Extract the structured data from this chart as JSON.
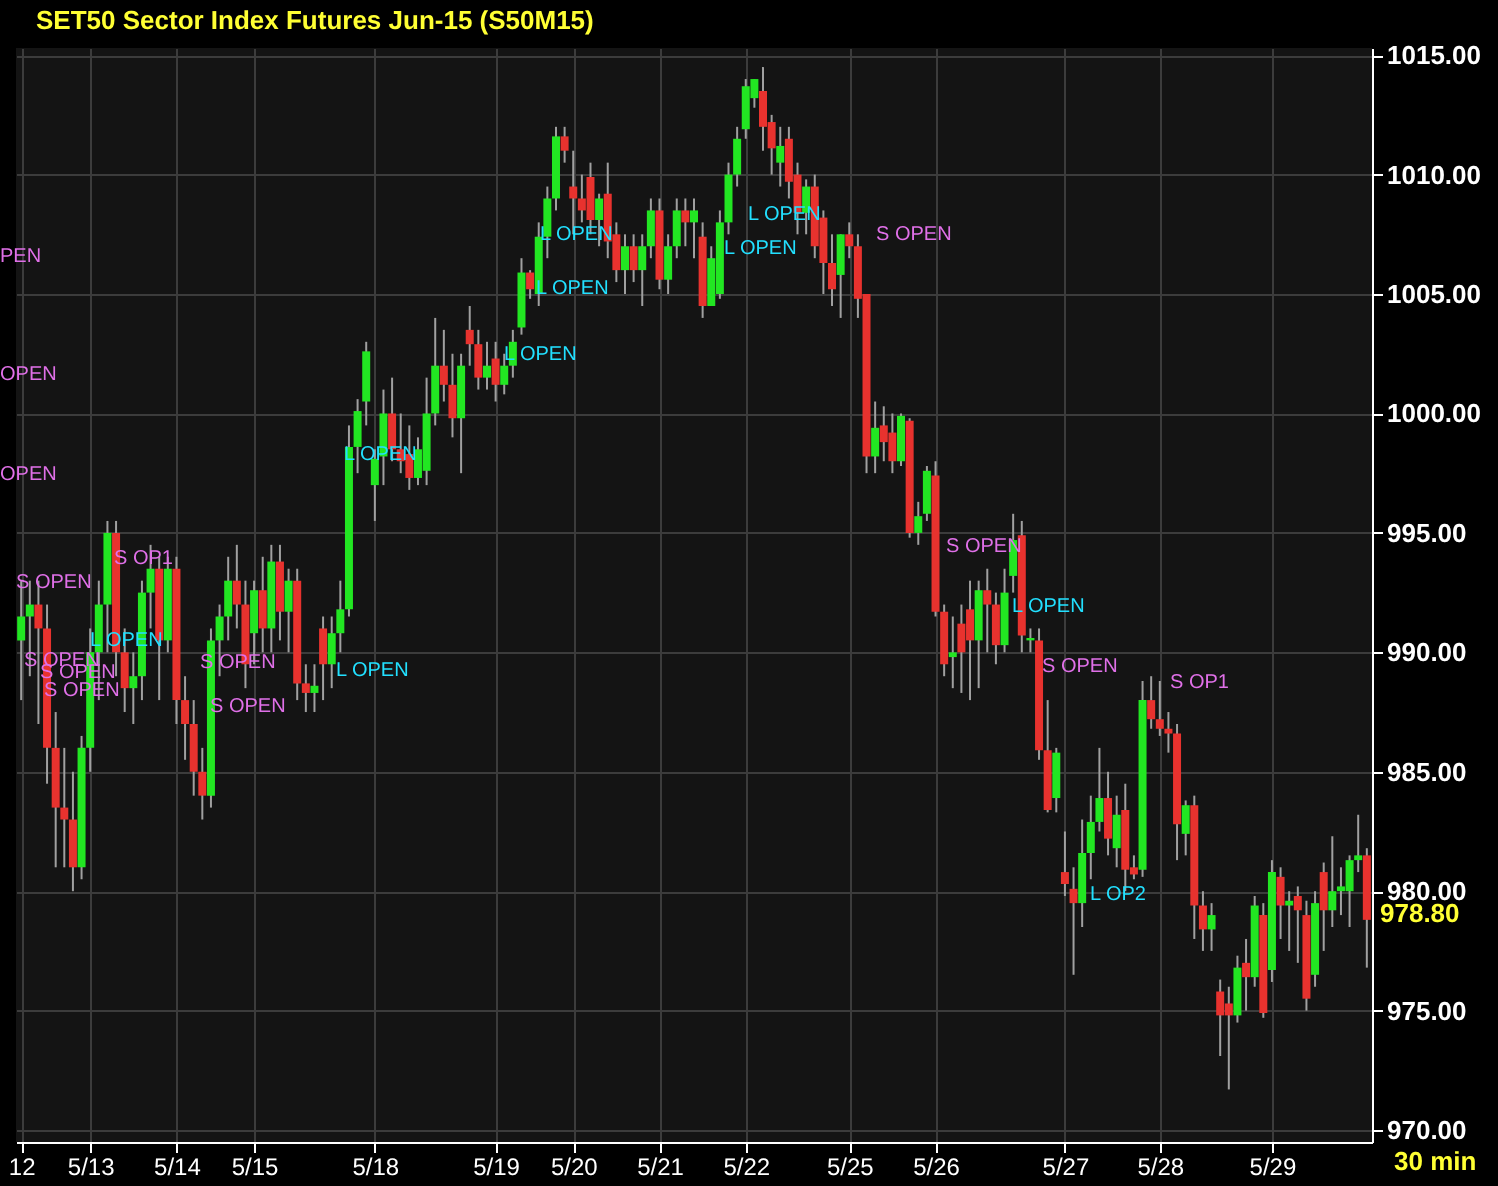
{
  "chart_data": {
    "type": "candlestick",
    "title": "SET50  Sector Index Futures Jun-15  (S50M15)",
    "categories": [
      "12",
      null,
      null,
      null,
      null,
      null,
      null,
      null,
      "5/13",
      null,
      null,
      null,
      null,
      null,
      null,
      null,
      null,
      null,
      "5/14",
      null,
      null,
      null,
      null,
      null,
      null,
      null,
      null,
      "5/15",
      null,
      null,
      null,
      null,
      null,
      null,
      null,
      null,
      null,
      null,
      null,
      null,
      null,
      "5/18",
      null,
      null,
      null,
      null,
      null,
      null,
      null,
      null,
      null,
      null,
      null,
      null,
      null,
      "5/19",
      null,
      null,
      null,
      null,
      null,
      null,
      null,
      null,
      "5/20",
      null,
      null,
      null,
      null,
      null,
      null,
      null,
      null,
      null,
      "5/21",
      null,
      null,
      null,
      null,
      null,
      null,
      null,
      null,
      null,
      "5/22",
      null,
      null,
      null,
      null,
      null,
      null,
      null,
      null,
      null,
      null,
      null,
      "5/25",
      null,
      null,
      null,
      null,
      null,
      null,
      null,
      null,
      null,
      "5/26",
      null,
      null,
      null,
      null,
      null,
      null,
      null,
      null,
      null,
      null,
      null,
      null,
      null,
      null,
      "5/27",
      null,
      null,
      null,
      null,
      null,
      null,
      null,
      null,
      null,
      null,
      "5/28",
      null,
      null,
      null,
      null,
      null,
      null,
      null,
      null,
      null,
      null,
      null,
      null,
      "5/29",
      null,
      null,
      null,
      null,
      null,
      null,
      null,
      null,
      null,
      null,
      null
    ],
    "ohlc": [
      [
        990.5,
        993,
        988,
        991.5
      ],
      [
        991.5,
        993,
        989,
        992
      ],
      [
        992,
        993,
        987,
        991
      ],
      [
        991,
        992,
        984.5,
        986
      ],
      [
        986,
        987.5,
        981,
        983.5
      ],
      [
        983.5,
        986,
        981,
        983
      ],
      [
        983,
        985,
        980,
        981
      ],
      [
        981,
        986.5,
        980.5,
        986
      ],
      [
        986,
        991,
        985,
        990
      ],
      [
        990,
        993,
        988,
        992
      ],
      [
        992,
        995.5,
        990,
        995
      ],
      [
        995,
        995.5,
        989,
        990
      ],
      [
        990,
        991,
        987.5,
        988.5
      ],
      [
        988.5,
        990,
        987,
        989
      ],
      [
        989,
        993,
        988,
        992.5
      ],
      [
        992.5,
        994.5,
        991,
        993.5
      ],
      [
        993.5,
        994,
        988,
        990.5
      ],
      [
        990.5,
        994,
        990,
        993.5
      ],
      [
        993.5,
        994,
        987,
        988
      ],
      [
        988,
        989,
        985.5,
        987
      ],
      [
        987,
        988,
        984,
        985
      ],
      [
        985,
        986,
        983,
        984
      ],
      [
        984,
        991,
        983.5,
        990.5
      ],
      [
        990.5,
        992,
        989,
        991.5
      ],
      [
        991.5,
        994,
        990.5,
        993
      ],
      [
        993,
        994.5,
        991,
        992
      ],
      [
        992,
        993,
        988.5,
        989.5
      ],
      [
        990.8,
        993,
        989.5,
        992.6
      ],
      [
        992.6,
        994,
        990,
        991
      ],
      [
        991,
        994.5,
        990,
        993.8
      ],
      [
        993.8,
        994.5,
        990.5,
        991.7
      ],
      [
        991.7,
        993.5,
        990,
        993
      ],
      [
        993,
        993.5,
        988,
        988.7
      ],
      [
        988.7,
        989.5,
        987.5,
        988.3
      ],
      [
        988.3,
        989.5,
        987.5,
        988.6
      ],
      [
        991,
        991.5,
        988,
        989.5
      ],
      [
        989.5,
        991.5,
        988.5,
        990.8
      ],
      [
        990.8,
        993,
        990,
        991.8
      ],
      [
        991.8,
        999.5,
        991.5,
        998.6
      ],
      [
        998.6,
        1000.6,
        997.5,
        1000.1
      ],
      [
        1000.5,
        1003,
        999.5,
        1002.6
      ],
      [
        997,
        998.5,
        995.5,
        998.1
      ],
      [
        998.2,
        1001,
        997,
        1000
      ],
      [
        1000,
        1001.5,
        998,
        998.5
      ],
      [
        998.5,
        1000,
        997.5,
        998
      ],
      [
        998.3,
        999.5,
        996.8,
        997.3
      ],
      [
        997.3,
        999,
        997,
        998.5
      ],
      [
        997.6,
        1001.5,
        997,
        1000
      ],
      [
        1000,
        1004,
        999.5,
        1002
      ],
      [
        1002,
        1003.5,
        1000.5,
        1001.2
      ],
      [
        1001.2,
        1002.5,
        999,
        999.8
      ],
      [
        999.8,
        1002.5,
        997.5,
        1002
      ],
      [
        1003.5,
        1004.5,
        1002,
        1002.9
      ],
      [
        1002.9,
        1003.5,
        1001,
        1001.5
      ],
      [
        1001.5,
        1003,
        1001,
        1002
      ],
      [
        1002.3,
        1003,
        1000.5,
        1001.2
      ],
      [
        1001.2,
        1002.5,
        1000.8,
        1002
      ],
      [
        1002,
        1003.5,
        1001.5,
        1003
      ],
      [
        1003.6,
        1006.5,
        1003.3,
        1005.9
      ],
      [
        1005.9,
        1006,
        1004.8,
        1005.2
      ],
      [
        1005,
        1008,
        1004.5,
        1007.4
      ],
      [
        1007.4,
        1009.5,
        1006.5,
        1009
      ],
      [
        1009,
        1012,
        1008.5,
        1011.6
      ],
      [
        1011.6,
        1012,
        1010.5,
        1011
      ],
      [
        1009.5,
        1011,
        1007.5,
        1009
      ],
      [
        1009,
        1010,
        1008,
        1008.5
      ],
      [
        1009.9,
        1010.5,
        1007.5,
        1008.1
      ],
      [
        1008.1,
        1009.2,
        1007,
        1009
      ],
      [
        1009.2,
        1010.5,
        1006.5,
        1007.2
      ],
      [
        1007.5,
        1008,
        1005.5,
        1006
      ],
      [
        1006,
        1007.5,
        1005,
        1007
      ],
      [
        1007,
        1007.5,
        1005.5,
        1006
      ],
      [
        1006,
        1007.5,
        1004.5,
        1007
      ],
      [
        1007,
        1009,
        1006.5,
        1008.5
      ],
      [
        1008.5,
        1009,
        1005.2,
        1005.6
      ],
      [
        1005.6,
        1007.5,
        1005,
        1007
      ],
      [
        1007,
        1009,
        1006.5,
        1008.5
      ],
      [
        1008.5,
        1009,
        1007,
        1008
      ],
      [
        1008,
        1009,
        1006.5,
        1008.5
      ],
      [
        1007.4,
        1008,
        1004,
        1004.5
      ],
      [
        1004.5,
        1007,
        1004.5,
        1006.5
      ],
      [
        1005,
        1008.5,
        1004.8,
        1008
      ],
      [
        1008,
        1010.5,
        1007.5,
        1010
      ],
      [
        1010,
        1012,
        1009.5,
        1011.5
      ],
      [
        1011.9,
        1014,
        1011.5,
        1013.7
      ],
      [
        1013.2,
        1014,
        1012.8,
        1014
      ],
      [
        1013.5,
        1014.5,
        1011,
        1012
      ],
      [
        1012.2,
        1012.5,
        1010,
        1011.1
      ],
      [
        1010.5,
        1012,
        1009.5,
        1011.2
      ],
      [
        1011.5,
        1012,
        1009,
        1009.7
      ],
      [
        1010,
        1010.5,
        1007.5,
        1008.4
      ],
      [
        1008.4,
        1009.8,
        1007.5,
        1009.5
      ],
      [
        1009.5,
        1010,
        1006.5,
        1007
      ],
      [
        1008.2,
        1008.5,
        1005,
        1006.3
      ],
      [
        1006.3,
        1007.5,
        1004.5,
        1005.2
      ],
      [
        1005.8,
        1007.5,
        1004,
        1007.5
      ],
      [
        1007.5,
        1008,
        1006.5,
        1007
      ],
      [
        1007,
        1007.5,
        1004,
        1004.8
      ],
      [
        1005,
        1005,
        997.5,
        998.2
      ],
      [
        998.2,
        1000.5,
        997.5,
        999.4
      ],
      [
        999.5,
        1000.3,
        998,
        998.8
      ],
      [
        999.2,
        1000,
        997.5,
        998
      ],
      [
        998,
        1000,
        997.8,
        999.9
      ],
      [
        999.7,
        999.8,
        994.8,
        995
      ],
      [
        995,
        996.3,
        994.5,
        995.7
      ],
      [
        995.8,
        997.8,
        995.5,
        997.6
      ],
      [
        997.4,
        998,
        991.5,
        991.7
      ],
      [
        991.7,
        992,
        989,
        989.5
      ],
      [
        989.8,
        991.5,
        988.5,
        990
      ],
      [
        991.2,
        992,
        988.3,
        990
      ],
      [
        991.8,
        993,
        988,
        990.5
      ],
      [
        990.5,
        993,
        988.5,
        992.6
      ],
      [
        992.6,
        993.5,
        990,
        992
      ],
      [
        992,
        992.5,
        989.5,
        990.3
      ],
      [
        990.3,
        993.5,
        990,
        992.5
      ],
      [
        993.2,
        995.8,
        992.5,
        994.7
      ],
      [
        994.9,
        995.5,
        990,
        990.7
      ],
      [
        990.5,
        991,
        990,
        990.6
      ],
      [
        990.5,
        991,
        985.5,
        985.9
      ],
      [
        985.9,
        988,
        983.3,
        983.4
      ],
      [
        983.9,
        986,
        983.3,
        985.8
      ],
      [
        980.8,
        982.5,
        979.8,
        980.3
      ],
      [
        980.1,
        981,
        976.5,
        979.5
      ],
      [
        979.5,
        983,
        978.5,
        981.6
      ],
      [
        981.6,
        984,
        980.5,
        982.9
      ],
      [
        982.9,
        986,
        982.5,
        983.9
      ],
      [
        983.9,
        985,
        981.5,
        982.2
      ],
      [
        981.8,
        984,
        981,
        983.2
      ],
      [
        983.4,
        984.5,
        980,
        980.9
      ],
      [
        981,
        981.5,
        980.5,
        980.7
      ],
      [
        980.9,
        988.8,
        980.6,
        988
      ],
      [
        988,
        989,
        986.8,
        987.2
      ],
      [
        987.2,
        988.8,
        986.5,
        986.8
      ],
      [
        986.8,
        987.5,
        985.8,
        986.6
      ],
      [
        986.6,
        987,
        981.3,
        982.8
      ],
      [
        982.4,
        983.8,
        981.5,
        983.6
      ],
      [
        983.6,
        984,
        978,
        979.4
      ],
      [
        979.4,
        980,
        977.5,
        978.4
      ],
      [
        978.4,
        979.5,
        977.5,
        979
      ],
      [
        975.8,
        976.3,
        973.1,
        974.8
      ],
      [
        975.3,
        976,
        971.7,
        974.8
      ],
      [
        974.8,
        977.3,
        974.5,
        976.8
      ],
      [
        977,
        978,
        975,
        976.4
      ],
      [
        976.4,
        979.8,
        976,
        979.4
      ],
      [
        979,
        979.5,
        974.7,
        974.9
      ],
      [
        976.7,
        981.3,
        976.2,
        980.8
      ],
      [
        980.6,
        981,
        978,
        979.4
      ],
      [
        979.4,
        980,
        977.5,
        979.6
      ],
      [
        979.8,
        980.2,
        977,
        979.2
      ],
      [
        979,
        979.6,
        975,
        975.5
      ],
      [
        976.5,
        980,
        976,
        979.5
      ],
      [
        980.8,
        981.2,
        977.5,
        979.2
      ],
      [
        979.2,
        982.3,
        978.5,
        980
      ],
      [
        980,
        981,
        979,
        980.2
      ],
      [
        980,
        981.5,
        978.5,
        981.3
      ],
      [
        981.3,
        983.2,
        980.8,
        981.5
      ],
      [
        981.5,
        981.8,
        976.8,
        978.8
      ]
    ],
    "colors": [
      "#22e622",
      "#22e622",
      "#e8322e",
      "#e8322e",
      "#e8322e",
      "#e8322e",
      "#e8322e",
      "#22e622",
      "#22e622",
      "#22e622",
      "#22e622",
      "#e8322e",
      "#e8322e",
      "#22e622",
      "#22e622",
      "#22e622",
      "#e8322e",
      "#22e622",
      "#e8322e",
      "#e8322e",
      "#e8322e",
      "#e8322e",
      "#22e622",
      "#22e622",
      "#22e622",
      "#e8322e",
      "#e8322e",
      "#22e622",
      "#e8322e",
      "#22e622",
      "#e8322e",
      "#22e622",
      "#e8322e",
      "#e8322e",
      "#22e622",
      "#e8322e",
      "#22e622",
      "#22e622",
      "#22e622",
      "#22e622",
      "#22e622",
      "#22e622",
      "#22e622",
      "#e8322e",
      "#e8322e",
      "#e8322e",
      "#22e622",
      "#22e622",
      "#22e622",
      "#e8322e",
      "#e8322e",
      "#22e622",
      "#e8322e",
      "#e8322e",
      "#22e622",
      "#e8322e",
      "#22e622",
      "#22e622",
      "#22e622",
      "#e8322e",
      "#22e622",
      "#22e622",
      "#22e622",
      "#e8322e",
      "#e8322e",
      "#e8322e",
      "#e8322e",
      "#22e622",
      "#e8322e",
      "#e8322e",
      "#22e622",
      "#e8322e",
      "#22e622",
      "#22e622",
      "#e8322e",
      "#22e622",
      "#22e622",
      "#e8322e",
      "#22e622",
      "#e8322e",
      "#22e622",
      "#22e622",
      "#22e622",
      "#22e622",
      "#22e622",
      "#22e622",
      "#e8322e",
      "#e8322e",
      "#22e622",
      "#e8322e",
      "#e8322e",
      "#22e622",
      "#e8322e",
      "#e8322e",
      "#e8322e",
      "#22e622",
      "#e8322e",
      "#e8322e",
      "#e8322e",
      "#22e622",
      "#e8322e",
      "#e8322e",
      "#22e622",
      "#e8322e",
      "#22e622",
      "#22e622",
      "#e8322e",
      "#e8322e",
      "#22e622",
      "#e8322e",
      "#e8322e",
      "#22e622",
      "#e8322e",
      "#e8322e",
      "#22e622",
      "#22e622",
      "#e8322e",
      "#22e622",
      "#e8322e",
      "#e8322e",
      "#22e622",
      "#e8322e",
      "#e8322e",
      "#22e622",
      "#22e622",
      "#22e622",
      "#e8322e",
      "#22e622",
      "#e8322e",
      "#e8322e",
      "#22e622",
      "#e8322e",
      "#e8322e",
      "#e8322e",
      "#e8322e",
      "#22e622",
      "#e8322e",
      "#e8322e",
      "#22e622",
      "#e8322e",
      "#e8322e",
      "#22e622",
      "#e8322e",
      "#22e622",
      "#e8322e",
      "#22e622",
      "#e8322e",
      "#22e622",
      "#e8322e",
      "#e8322e",
      "#22e622",
      "#e8322e",
      "#22e622",
      "#22e622",
      "#22e622",
      "#22e622",
      "#e8322e"
    ],
    "ylim": [
      969.5,
      1015.3
    ],
    "yticks": [
      {
        "value": 970,
        "label": "970.00"
      },
      {
        "value": 975,
        "label": "975.00"
      },
      {
        "value": 980,
        "label": "980.00"
      },
      {
        "value": 985,
        "label": "985.00"
      },
      {
        "value": 990,
        "label": "990.00"
      },
      {
        "value": 995,
        "label": "995.00"
      },
      {
        "value": 1000,
        "label": "1000.00"
      },
      {
        "value": 1005,
        "label": "1005.00"
      },
      {
        "value": 1010,
        "label": "1010.00"
      },
      {
        "value": 1015,
        "label": "1015.00"
      }
    ],
    "grid": true,
    "annotations": [
      "PEN",
      "OPEN",
      "OPEN",
      "S  OPEN",
      "S  OPEN",
      "S  OPEN",
      "S  OPEN",
      "L  OPEN",
      "S  OP1",
      "S  OPEN",
      "S  OPEN",
      "L  OPEN",
      "L  OPEN",
      "L  OPEN",
      "L  OPEN",
      "L  OPEN",
      "L  OPEN",
      "L  OPEN",
      "S  OPEN",
      "S  OPEN",
      "L  OPEN",
      "S  OPEN",
      "L  OP2",
      "S  OP1",
      "978.80",
      "30  min"
    ]
  }
}
